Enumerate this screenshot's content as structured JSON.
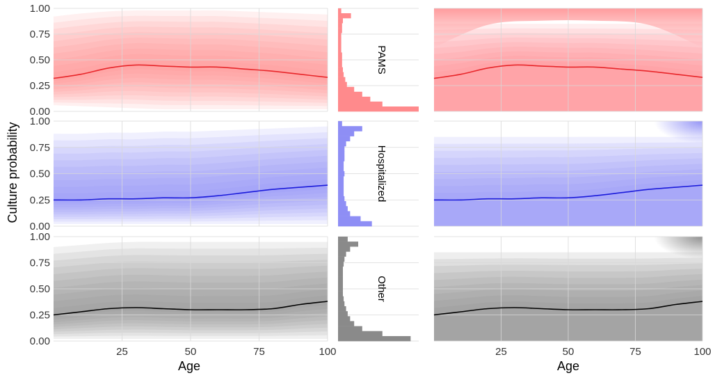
{
  "chart_data": {
    "type": "area",
    "ylabel": "Culture probability",
    "xlabel": "Age",
    "xticks": [
      25,
      50,
      75,
      100
    ],
    "yticks": [
      "0.00",
      "0.25",
      "0.50",
      "0.75",
      "1.00"
    ],
    "xlim": [
      0,
      100
    ],
    "ylim": [
      0,
      1
    ],
    "grid": true,
    "panels": [
      "left-distribution",
      "center-histogram",
      "right-distribution"
    ],
    "groups": [
      {
        "name": "PAMS",
        "color": "#e8262a",
        "fill": "#ff8a8c",
        "curve": {
          "x": [
            0,
            10,
            20,
            30,
            40,
            50,
            60,
            70,
            80,
            90,
            100
          ],
          "y": [
            0.32,
            0.36,
            0.42,
            0.45,
            0.44,
            0.43,
            0.43,
            0.41,
            0.39,
            0.36,
            0.33
          ]
        },
        "left_band_top": [
          0.92,
          0.95,
          0.97,
          0.98,
          0.98,
          0.98,
          0.98,
          0.97,
          0.96,
          0.95,
          0.94
        ],
        "left_band_bottom": [
          0.06,
          0.05,
          0.04,
          0.03,
          0.02,
          0.02,
          0.02,
          0.02,
          0.02,
          0.02,
          0.02
        ],
        "hist": [
          0.04,
          0.16,
          0.06,
          0.05,
          0.05,
          0.04,
          0.04,
          0.04,
          0.04,
          0.05,
          0.05,
          0.05,
          0.06,
          0.07,
          0.09,
          0.11,
          0.2,
          0.3,
          0.4,
          0.55,
          1.0
        ]
      },
      {
        "name": "Hospitalized",
        "color": "#1a1adb",
        "fill": "#8e8ef5",
        "curve": {
          "x": [
            0,
            10,
            20,
            30,
            40,
            50,
            60,
            70,
            80,
            90,
            100
          ],
          "y": [
            0.25,
            0.25,
            0.26,
            0.26,
            0.27,
            0.27,
            0.29,
            0.32,
            0.35,
            0.37,
            0.39
          ]
        },
        "left_band_top": [
          0.88,
          0.88,
          0.89,
          0.89,
          0.9,
          0.9,
          0.91,
          0.92,
          0.93,
          0.94,
          0.95
        ],
        "left_band_bottom": [
          0.02,
          0.02,
          0.02,
          0.02,
          0.02,
          0.02,
          0.02,
          0.02,
          0.02,
          0.02,
          0.02
        ],
        "hist": [
          0.05,
          0.3,
          0.2,
          0.15,
          0.1,
          0.08,
          0.08,
          0.08,
          0.07,
          0.07,
          0.08,
          0.07,
          0.07,
          0.07,
          0.07,
          0.08,
          0.1,
          0.12,
          0.15,
          0.28,
          0.42
        ]
      },
      {
        "name": "Other",
        "color": "#000000",
        "fill": "#8a8a8a",
        "curve": {
          "x": [
            0,
            10,
            20,
            30,
            40,
            50,
            60,
            70,
            80,
            90,
            100
          ],
          "y": [
            0.25,
            0.28,
            0.31,
            0.32,
            0.31,
            0.3,
            0.3,
            0.3,
            0.31,
            0.35,
            0.38
          ]
        },
        "left_band_top": [
          0.9,
          0.92,
          0.94,
          0.95,
          0.95,
          0.95,
          0.95,
          0.95,
          0.95,
          0.95,
          0.95
        ],
        "left_band_bottom": [
          0.02,
          0.02,
          0.02,
          0.02,
          0.02,
          0.02,
          0.02,
          0.02,
          0.02,
          0.02,
          0.02
        ],
        "hist": [
          0.12,
          0.25,
          0.15,
          0.1,
          0.08,
          0.07,
          0.06,
          0.06,
          0.06,
          0.06,
          0.06,
          0.06,
          0.07,
          0.08,
          0.1,
          0.12,
          0.15,
          0.2,
          0.3,
          0.55,
          0.9
        ]
      }
    ]
  }
}
